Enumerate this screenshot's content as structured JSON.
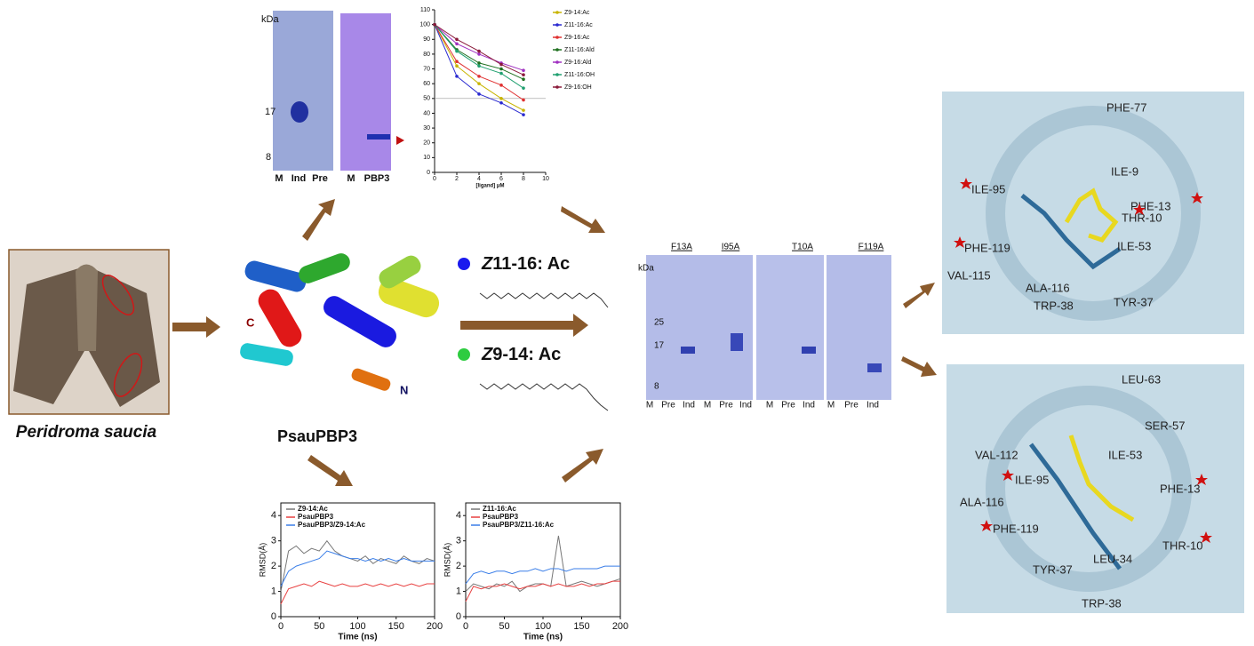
{
  "species": "Peridroma saucia",
  "protein": {
    "name": "PsauPBP3",
    "c_label": "C",
    "n_label": "N"
  },
  "ligands": [
    {
      "italic": "Z",
      "rest": "11-16: Ac",
      "color": "#1a1aee"
    },
    {
      "italic": "Z",
      "rest": "9-14: Ac",
      "color": "#2ecc40"
    }
  ],
  "gel_expression": {
    "unit": "kDa",
    "markers": [
      "17",
      "8"
    ],
    "lanes_left": [
      "M",
      "Ind",
      "Pre"
    ],
    "lanes_right": [
      "M",
      "PBP3"
    ]
  },
  "gel_mutants": {
    "unit": "kDa",
    "markers": [
      "25",
      "17",
      "8"
    ],
    "mutants": [
      {
        "name": "F13A",
        "lanes": [
          "M",
          "Pre",
          "Ind"
        ]
      },
      {
        "name": "I95A",
        "lanes": [
          "M",
          "Pre",
          "Ind"
        ]
      },
      {
        "name": "T10A",
        "lanes": [
          "M",
          "Pre",
          "Ind"
        ]
      },
      {
        "name": "F119A",
        "lanes": [
          "M",
          "Pre",
          "Ind"
        ]
      }
    ]
  },
  "docking_top": {
    "residues": [
      "PHE-77",
      "ILE-9",
      "ILE-95",
      "PHE-13",
      "THR-10",
      "PHE-119",
      "ILE-53",
      "VAL-115",
      "ALA-116",
      "TRP-38",
      "TYR-37"
    ]
  },
  "docking_bottom": {
    "residues": [
      "LEU-63",
      "SER-57",
      "VAL-112",
      "ILE-53",
      "ILE-95",
      "ALA-116",
      "PHE-13",
      "PHE-119",
      "THR-10",
      "LEU-34",
      "TYR-37",
      "TRP-38"
    ]
  },
  "chart_data": [
    {
      "type": "line",
      "x_label": "[ligand] μM",
      "x": [
        0,
        2,
        4,
        6,
        8
      ],
      "xlim": [
        0,
        10
      ],
      "xticks": [
        0,
        2,
        4,
        6,
        8,
        10
      ],
      "ylim": [
        0,
        110
      ],
      "yticks": [
        0,
        10,
        20,
        30,
        40,
        50,
        60,
        70,
        80,
        90,
        100,
        110
      ],
      "ref_line": 50,
      "markers": true,
      "legend": "right",
      "series": [
        {
          "name": "Z9-14:Ac",
          "color": "#c8b400",
          "values": [
            100,
            72,
            60,
            50,
            42
          ]
        },
        {
          "name": "Z11-16:Ac",
          "color": "#2a2ad0",
          "values": [
            100,
            65,
            53,
            47,
            39
          ]
        },
        {
          "name": "Z9-16:Ac",
          "color": "#e03030",
          "values": [
            100,
            75,
            65,
            59,
            49
          ]
        },
        {
          "name": "Z11-16:Ald",
          "color": "#207020",
          "values": [
            100,
            83,
            74,
            70,
            63
          ]
        },
        {
          "name": "Z9-16:Ald",
          "color": "#a030c0",
          "values": [
            100,
            87,
            80,
            74,
            69
          ]
        },
        {
          "name": "Z11-16:OH",
          "color": "#20a070",
          "values": [
            100,
            82,
            72,
            67,
            57
          ]
        },
        {
          "name": "Z9-16:OH",
          "color": "#8a1a3a",
          "values": [
            100,
            90,
            82,
            73,
            66
          ]
        }
      ]
    },
    {
      "type": "line",
      "x_label": "Time (ns)",
      "y_label": "RMSD(Å)",
      "frame": true,
      "legend": "upper left",
      "x": [
        0,
        10,
        20,
        30,
        40,
        50,
        60,
        70,
        80,
        90,
        100,
        110,
        120,
        130,
        140,
        150,
        160,
        170,
        180,
        190,
        200
      ],
      "xlim": [
        0,
        200
      ],
      "xticks": [
        0,
        50,
        100,
        150,
        200
      ],
      "ylim": [
        0,
        4.5
      ],
      "yticks": [
        0,
        1,
        2,
        3,
        4
      ],
      "series": [
        {
          "name": "Z9-14:Ac",
          "color": "#777777",
          "values": [
            1.0,
            2.6,
            2.8,
            2.5,
            2.7,
            2.6,
            3.0,
            2.6,
            2.4,
            2.3,
            2.2,
            2.4,
            2.1,
            2.3,
            2.2,
            2.1,
            2.4,
            2.2,
            2.1,
            2.3,
            2.2
          ]
        },
        {
          "name": "PsauPBP3",
          "color": "#e84040",
          "values": [
            0.5,
            1.1,
            1.2,
            1.3,
            1.2,
            1.4,
            1.3,
            1.2,
            1.3,
            1.2,
            1.2,
            1.3,
            1.2,
            1.3,
            1.2,
            1.3,
            1.2,
            1.3,
            1.2,
            1.3,
            1.3
          ]
        },
        {
          "name": "PsauPBP3/Z9-14:Ac",
          "color": "#3a7ee8",
          "values": [
            1.2,
            1.8,
            2.0,
            2.1,
            2.2,
            2.3,
            2.6,
            2.5,
            2.4,
            2.3,
            2.3,
            2.2,
            2.3,
            2.2,
            2.3,
            2.2,
            2.3,
            2.2,
            2.2,
            2.2,
            2.2
          ]
        }
      ]
    },
    {
      "type": "line",
      "x_label": "Time (ns)",
      "y_label": "RMSD(Å)",
      "frame": true,
      "legend": "upper left",
      "x": [
        0,
        10,
        20,
        30,
        40,
        50,
        60,
        70,
        80,
        90,
        100,
        110,
        120,
        130,
        140,
        150,
        160,
        170,
        180,
        190,
        200
      ],
      "xlim": [
        0,
        200
      ],
      "xticks": [
        0,
        50,
        100,
        150,
        200
      ],
      "ylim": [
        0,
        4.5
      ],
      "yticks": [
        0,
        1,
        2,
        3,
        4
      ],
      "series": [
        {
          "name": "Z11-16:Ac",
          "color": "#777777",
          "values": [
            1.0,
            1.3,
            1.2,
            1.1,
            1.3,
            1.2,
            1.4,
            1.0,
            1.2,
            1.3,
            1.3,
            1.2,
            3.2,
            1.2,
            1.3,
            1.4,
            1.3,
            1.2,
            1.3,
            1.4,
            1.5
          ]
        },
        {
          "name": "PsauPBP3",
          "color": "#e84040",
          "values": [
            0.6,
            1.2,
            1.1,
            1.2,
            1.2,
            1.3,
            1.2,
            1.1,
            1.2,
            1.2,
            1.3,
            1.2,
            1.3,
            1.2,
            1.2,
            1.3,
            1.2,
            1.3,
            1.3,
            1.4,
            1.4
          ]
        },
        {
          "name": "PsauPBP3/Z11-16:Ac",
          "color": "#3a7ee8",
          "values": [
            1.3,
            1.7,
            1.8,
            1.7,
            1.8,
            1.8,
            1.7,
            1.8,
            1.8,
            1.9,
            1.8,
            1.9,
            1.9,
            1.8,
            1.9,
            1.9,
            1.9,
            1.9,
            2.0,
            2.0,
            2.0
          ]
        }
      ]
    }
  ]
}
